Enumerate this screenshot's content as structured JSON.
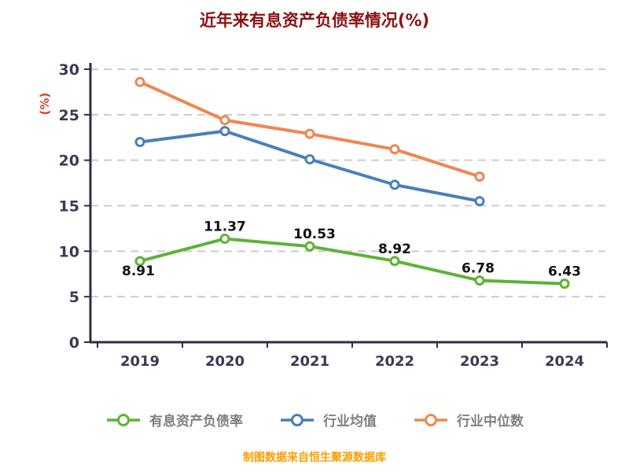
{
  "footer": "制图数据来自恒生聚源数据库",
  "colors": {
    "title": "#8b1111",
    "footer": "#ff9d00",
    "axis": "#2e2e44",
    "grid": "#cccccc",
    "tick": "#3a3a52",
    "label": "#111111",
    "legend": "#808080",
    "ylabel": "#e03a2f"
  },
  "chart_data": {
    "type": "line",
    "title": "近年来有息资产负债率情况(%)",
    "ylabel": "(%)",
    "categories": [
      "2019",
      "2020",
      "2021",
      "2022",
      "2023",
      "2024"
    ],
    "series": [
      {
        "name": "有息资产负债率",
        "color": "#5eb237",
        "show_labels": true,
        "values": [
          8.91,
          11.37,
          10.53,
          8.92,
          6.78,
          6.43
        ]
      },
      {
        "name": "行业均值",
        "color": "#4a7ebb",
        "show_labels": false,
        "values": [
          22.0,
          23.2,
          20.1,
          17.3,
          15.5,
          null
        ]
      },
      {
        "name": "行业中位数",
        "color": "#f08650",
        "show_labels": false,
        "values": [
          28.6,
          24.4,
          22.9,
          21.2,
          18.2,
          null
        ]
      }
    ],
    "ylim": [
      0,
      30
    ],
    "yticks": [
      0,
      5,
      10,
      15,
      20,
      25,
      30
    ],
    "grid": "dashed horizontal",
    "legend_position": "bottom"
  }
}
